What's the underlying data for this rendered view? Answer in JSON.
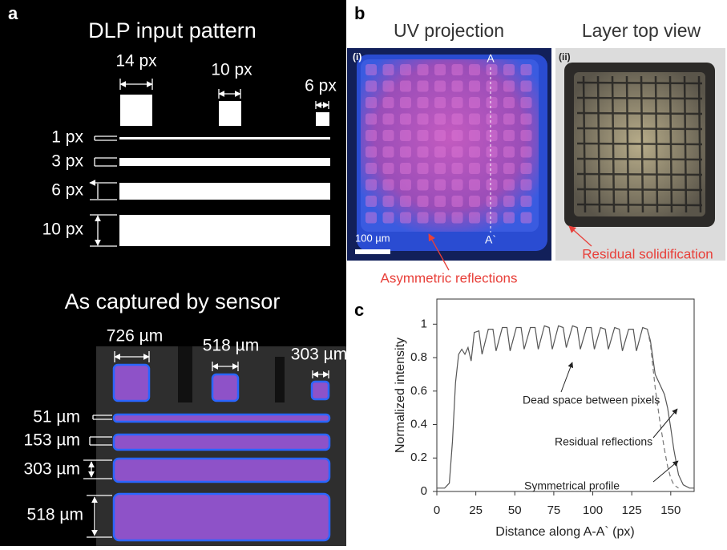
{
  "panel_a": {
    "label": "a",
    "title": "DLP input pattern",
    "widths": [
      "14 px",
      "10 px",
      "6 px"
    ],
    "heights": [
      "1 px",
      "3 px",
      "6 px",
      "10 px"
    ],
    "subtitle": "As captured by sensor",
    "sensor_widths": [
      "726 µm",
      "518 µm",
      "303 µm"
    ],
    "sensor_heights": [
      "51 µm",
      "153 µm",
      "303 µm",
      "518 µm"
    ]
  },
  "panel_b": {
    "label": "b",
    "left_title": "UV projection",
    "right_title": "Layer top view",
    "left_tag": "(i)",
    "right_tag": "(ii)",
    "section_start": "A",
    "section_end": "A`",
    "scale_bar": "100 µm",
    "left_note": "Asymmetric reflections",
    "right_note": "Residual solidification"
  },
  "panel_c_label": "c",
  "chart_data": {
    "type": "line",
    "x_label": "Distance along A-A` (px)",
    "y_label": "Normalized intensity",
    "x": [
      0,
      5,
      8,
      10,
      12,
      14,
      16,
      18,
      20,
      22,
      24,
      27,
      29,
      33,
      36,
      38,
      42,
      45,
      47,
      51,
      54,
      56,
      60,
      63,
      65,
      69,
      72,
      74,
      78,
      81,
      83,
      87,
      90,
      92,
      96,
      99,
      101,
      105,
      108,
      110,
      114,
      117,
      119,
      123,
      126,
      128,
      132,
      135,
      137,
      140,
      143,
      146,
      148,
      150,
      152,
      155,
      158,
      162,
      165
    ],
    "series": [
      {
        "color": "#555555",
        "dash": false,
        "values": [
          0.02,
          0.02,
          0.05,
          0.3,
          0.65,
          0.82,
          0.85,
          0.82,
          0.86,
          0.78,
          0.95,
          0.96,
          0.82,
          0.97,
          0.97,
          0.84,
          0.98,
          0.98,
          0.84,
          0.98,
          0.98,
          0.85,
          0.98,
          0.98,
          0.85,
          0.99,
          0.98,
          0.85,
          0.99,
          0.98,
          0.86,
          0.99,
          0.98,
          0.85,
          0.98,
          0.98,
          0.85,
          0.98,
          0.97,
          0.85,
          0.98,
          0.97,
          0.84,
          0.97,
          0.97,
          0.84,
          0.98,
          0.97,
          0.9,
          0.7,
          0.64,
          0.58,
          0.5,
          0.38,
          0.25,
          0.1,
          0.04,
          0.02,
          0.02
        ]
      },
      {
        "color": "#777777",
        "dash": true,
        "values": [
          null,
          null,
          null,
          null,
          null,
          null,
          null,
          null,
          null,
          null,
          null,
          null,
          null,
          null,
          null,
          null,
          null,
          null,
          null,
          null,
          null,
          null,
          null,
          null,
          null,
          null,
          null,
          null,
          null,
          null,
          null,
          null,
          null,
          null,
          null,
          null,
          null,
          null,
          null,
          null,
          null,
          null,
          null,
          null,
          null,
          null,
          null,
          0.97,
          0.88,
          0.62,
          0.42,
          0.25,
          0.15,
          0.08,
          0.04,
          0.02,
          null,
          null,
          null
        ]
      }
    ],
    "annotations": [
      "Dead space between pixels",
      "Residual reflections",
      "Symmetrical profile"
    ],
    "xlim": [
      0,
      165
    ],
    "ylim": [
      0,
      1.15
    ],
    "xticks": [
      0,
      25,
      50,
      75,
      100,
      125,
      150
    ],
    "yticks": [
      0,
      0.2,
      0.4,
      0.6,
      0.8,
      1
    ]
  }
}
